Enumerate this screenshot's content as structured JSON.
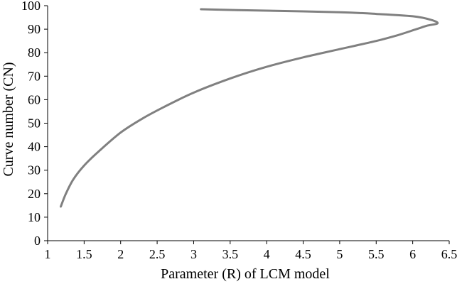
{
  "chart_data": {
    "type": "line",
    "title": "",
    "xlabel": "Parameter (R) of LCM model",
    "ylabel": "Curve number (CN)",
    "xlim": [
      1,
      6.5
    ],
    "ylim": [
      0,
      100
    ],
    "x_ticks": [
      "1",
      "1.5",
      "2",
      "2.5",
      "3",
      "3.5",
      "4",
      "4.5",
      "5",
      "5.5",
      "6",
      "6.5"
    ],
    "y_ticks": [
      "0",
      "10",
      "20",
      "30",
      "40",
      "50",
      "60",
      "70",
      "80",
      "90",
      "100"
    ],
    "grid": false,
    "legend": "none",
    "series": [
      {
        "color": "#808080",
        "points": [
          [
            1.18,
            14.5
          ],
          [
            1.25,
            20
          ],
          [
            1.35,
            26
          ],
          [
            1.5,
            32
          ],
          [
            1.7,
            38
          ],
          [
            2.0,
            46
          ],
          [
            2.3,
            52
          ],
          [
            2.6,
            57
          ],
          [
            3.0,
            63
          ],
          [
            3.5,
            69
          ],
          [
            4.0,
            74
          ],
          [
            4.5,
            78
          ],
          [
            5.0,
            81.5
          ],
          [
            5.5,
            85
          ],
          [
            5.8,
            87.5
          ],
          [
            6.05,
            90
          ],
          [
            6.2,
            91.5
          ],
          [
            6.34,
            92.5
          ],
          [
            6.25,
            94
          ],
          [
            6.0,
            95.5
          ],
          [
            5.5,
            96.5
          ],
          [
            5.0,
            97.2
          ],
          [
            4.0,
            97.9
          ],
          [
            3.5,
            98.2
          ],
          [
            3.1,
            98.5
          ]
        ]
      }
    ]
  }
}
